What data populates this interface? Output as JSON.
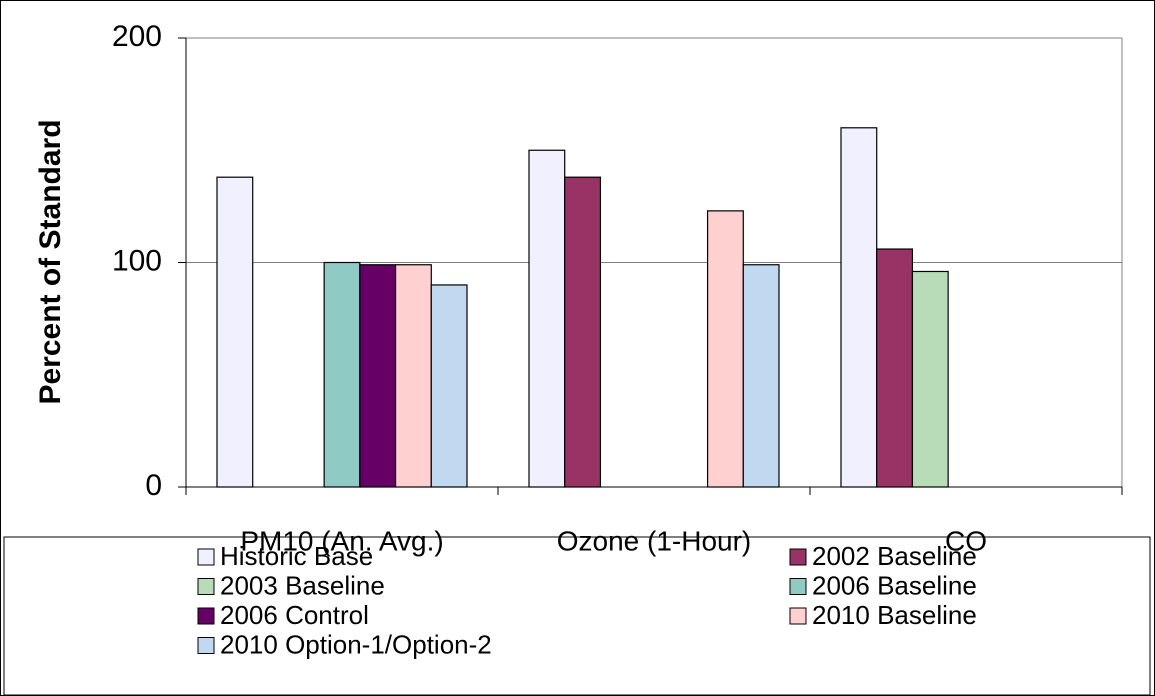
{
  "chart_data": {
    "type": "bar",
    "y_label": "Percent of Standard",
    "categories": [
      "PM10 (An. Avg.)",
      "Ozone (1-Hour)",
      "CO"
    ],
    "series": [
      {
        "name": "Historic Base",
        "color": "#f0f0ff",
        "values": [
          138,
          150,
          160
        ]
      },
      {
        "name": "2002 Baseline",
        "color": "#993366",
        "values": [
          null,
          138,
          106
        ]
      },
      {
        "name": "2003 Baseline",
        "color": "#b8dcb8",
        "values": [
          null,
          null,
          96
        ]
      },
      {
        "name": "2006 Baseline",
        "color": "#8fcbc4",
        "values": [
          100,
          null,
          null
        ]
      },
      {
        "name": "2006 Control",
        "color": "#660066",
        "values": [
          99,
          null,
          null
        ]
      },
      {
        "name": "2010 Baseline",
        "color": "#ffd0d0",
        "values": [
          99,
          123,
          null
        ]
      },
      {
        "name": "2010 Option-1/Option-2",
        "color": "#c0d8f0",
        "values": [
          90,
          99,
          null
        ]
      }
    ],
    "ylim": [
      0,
      200
    ],
    "yticks": [
      0,
      100,
      200
    ],
    "grid": true
  }
}
